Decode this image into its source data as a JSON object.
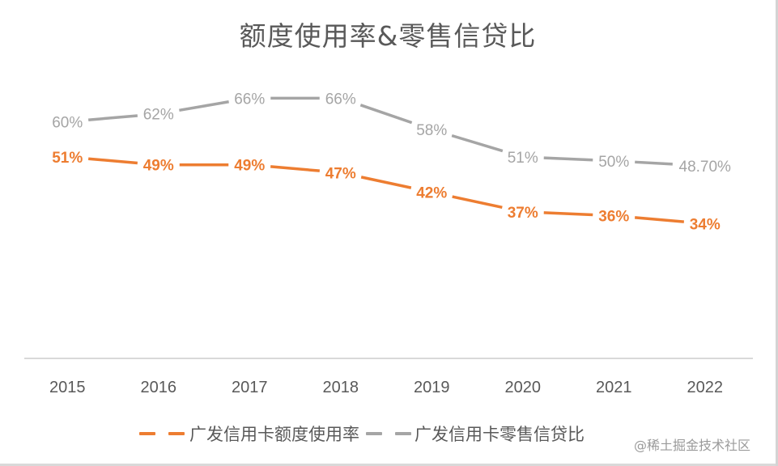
{
  "chart_data": {
    "type": "line",
    "title": "额度使用率&零售信贷比",
    "xlabel": "",
    "ylabel": "",
    "categories": [
      "2015",
      "2016",
      "2017",
      "2018",
      "2019",
      "2020",
      "2021",
      "2022"
    ],
    "ylim": [
      0,
      70
    ],
    "grid": false,
    "legend_position": "bottom",
    "series": [
      {
        "name": "广发信用卡额度使用率",
        "color": "#ed7d31",
        "line_style": "solid",
        "values": [
          51,
          49,
          49,
          47,
          42,
          37,
          36,
          34
        ],
        "labels": [
          "51%",
          "49%",
          "49%",
          "47%",
          "42%",
          "37%",
          "36%",
          "34%"
        ],
        "label_bold": true
      },
      {
        "name": "广发信用卡零售信贷比",
        "color": "#a5a5a5",
        "line_style": "solid",
        "values": [
          60,
          62,
          66,
          66,
          58,
          51,
          50,
          48.7
        ],
        "labels": [
          "60%",
          "62%",
          "66%",
          "66%",
          "58%",
          "51%",
          "50%",
          "48.70%"
        ],
        "label_bold": false
      }
    ]
  },
  "watermark": "@稀土掘金技术社区",
  "colors": {
    "axis_line": "#d9d9d9",
    "tick_label": "#595959",
    "title": "#595959"
  }
}
